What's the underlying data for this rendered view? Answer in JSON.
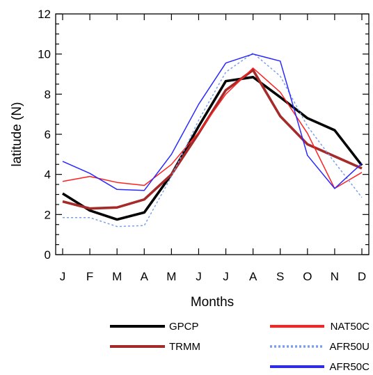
{
  "chart_data": {
    "type": "line",
    "title": "",
    "xlabel": "Months",
    "ylabel": "latitude (N)",
    "categories": [
      "J",
      "F",
      "M",
      "A",
      "M",
      "J",
      "J",
      "A",
      "S",
      "O",
      "N",
      "D"
    ],
    "ylim": [
      0,
      12
    ],
    "yticks": [
      "0",
      "2",
      "4",
      "6",
      "8",
      "10",
      "12"
    ],
    "ytick_values": [
      0,
      2,
      4,
      6,
      8,
      10,
      12
    ],
    "grid": false,
    "legend_position": "bottom",
    "series": [
      {
        "name": "GPCP",
        "color": "#000000",
        "dash": "solid",
        "weight": "thick",
        "values": [
          3.05,
          2.2,
          1.75,
          2.1,
          4.0,
          6.4,
          8.65,
          8.85,
          7.85,
          6.8,
          6.2,
          4.45
        ]
      },
      {
        "name": "TRMM",
        "color": "#a52a2a",
        "dash": "solid",
        "weight": "thick",
        "values": [
          2.65,
          2.3,
          2.35,
          2.75,
          4.0,
          6.05,
          8.2,
          9.2,
          6.9,
          5.5,
          4.9,
          4.3
        ]
      },
      {
        "name": "NAT50C",
        "color": "#ff2020",
        "dash": "solid",
        "weight": "thin",
        "values": [
          3.65,
          3.9,
          3.6,
          3.45,
          4.5,
          6.1,
          8.0,
          9.3,
          8.1,
          6.05,
          3.3,
          4.1
        ]
      },
      {
        "name": "AFR50U",
        "color": "#7a9fe8",
        "dash": "dotted",
        "weight": "thin",
        "values": [
          1.85,
          1.85,
          1.4,
          1.45,
          3.9,
          6.7,
          9.1,
          10.05,
          8.9,
          6.4,
          4.6,
          2.85
        ]
      },
      {
        "name": "AFR50C",
        "color": "#2828ff",
        "dash": "solid",
        "weight": "thin",
        "values": [
          4.65,
          4.05,
          3.25,
          3.2,
          5.0,
          7.5,
          9.55,
          10.0,
          9.65,
          4.95,
          3.3,
          4.55
        ]
      }
    ]
  }
}
